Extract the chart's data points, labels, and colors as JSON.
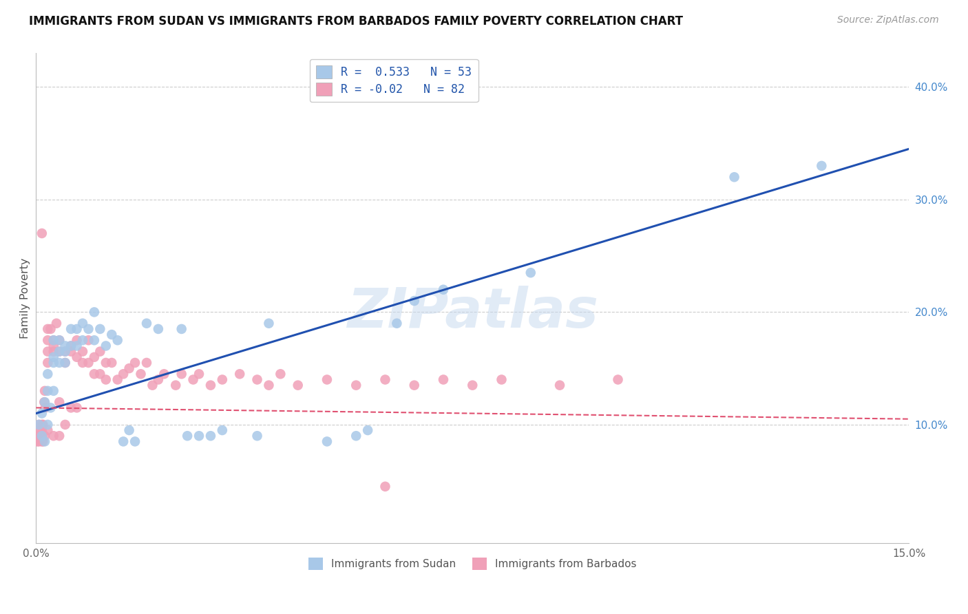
{
  "title": "IMMIGRANTS FROM SUDAN VS IMMIGRANTS FROM BARBADOS FAMILY POVERTY CORRELATION CHART",
  "source": "Source: ZipAtlas.com",
  "ylabel": "Family Poverty",
  "ytick_vals": [
    0.1,
    0.2,
    0.3,
    0.4
  ],
  "ytick_labels": [
    "10.0%",
    "20.0%",
    "30.0%",
    "40.0%"
  ],
  "xlim": [
    0.0,
    0.15
  ],
  "ylim": [
    -0.005,
    0.43
  ],
  "sudan_R": 0.533,
  "sudan_N": 53,
  "barbados_R": -0.02,
  "barbados_N": 82,
  "sudan_color": "#a8c8e8",
  "barbados_color": "#f0a0b8",
  "sudan_line_color": "#2050b0",
  "barbados_line_color": "#e05070",
  "watermark": "ZIPatlas",
  "legend_sudan_label": "Immigrants from Sudan",
  "legend_barbados_label": "Immigrants from Barbados",
  "sudan_line_x0": 0.0,
  "sudan_line_y0": 0.11,
  "sudan_line_x1": 0.15,
  "sudan_line_y1": 0.345,
  "barbados_line_x0": 0.0,
  "barbados_line_y0": 0.115,
  "barbados_line_x1": 0.15,
  "barbados_line_y1": 0.105,
  "sudan_x": [
    0.0005,
    0.001,
    0.001,
    0.0015,
    0.0015,
    0.002,
    0.002,
    0.002,
    0.0025,
    0.003,
    0.003,
    0.003,
    0.003,
    0.004,
    0.004,
    0.004,
    0.005,
    0.005,
    0.005,
    0.006,
    0.006,
    0.007,
    0.007,
    0.008,
    0.008,
    0.009,
    0.01,
    0.01,
    0.011,
    0.012,
    0.013,
    0.014,
    0.015,
    0.016,
    0.017,
    0.019,
    0.021,
    0.025,
    0.026,
    0.028,
    0.03,
    0.032,
    0.038,
    0.04,
    0.05,
    0.055,
    0.057,
    0.062,
    0.065,
    0.07,
    0.085,
    0.12,
    0.135
  ],
  "sudan_y": [
    0.1,
    0.09,
    0.11,
    0.085,
    0.12,
    0.1,
    0.13,
    0.145,
    0.115,
    0.13,
    0.16,
    0.175,
    0.155,
    0.165,
    0.155,
    0.175,
    0.17,
    0.155,
    0.165,
    0.17,
    0.185,
    0.17,
    0.185,
    0.175,
    0.19,
    0.185,
    0.175,
    0.2,
    0.185,
    0.17,
    0.18,
    0.175,
    0.085,
    0.095,
    0.085,
    0.19,
    0.185,
    0.185,
    0.09,
    0.09,
    0.09,
    0.095,
    0.09,
    0.19,
    0.085,
    0.09,
    0.095,
    0.19,
    0.21,
    0.22,
    0.235,
    0.32,
    0.33
  ],
  "barbados_x": [
    0.0002,
    0.0004,
    0.0005,
    0.0005,
    0.0006,
    0.0008,
    0.001,
    0.001,
    0.001,
    0.001,
    0.0012,
    0.0012,
    0.0014,
    0.0015,
    0.0015,
    0.0016,
    0.002,
    0.002,
    0.002,
    0.002,
    0.002,
    0.0025,
    0.003,
    0.003,
    0.003,
    0.003,
    0.0035,
    0.004,
    0.004,
    0.004,
    0.004,
    0.005,
    0.005,
    0.005,
    0.006,
    0.006,
    0.006,
    0.007,
    0.007,
    0.007,
    0.008,
    0.008,
    0.009,
    0.009,
    0.01,
    0.01,
    0.011,
    0.011,
    0.012,
    0.012,
    0.013,
    0.014,
    0.015,
    0.016,
    0.017,
    0.018,
    0.019,
    0.02,
    0.021,
    0.022,
    0.024,
    0.025,
    0.027,
    0.028,
    0.03,
    0.032,
    0.035,
    0.038,
    0.04,
    0.042,
    0.045,
    0.05,
    0.055,
    0.06,
    0.065,
    0.07,
    0.075,
    0.08,
    0.09,
    0.1,
    0.06,
    0.001
  ],
  "barbados_y": [
    0.085,
    0.09,
    0.1,
    0.085,
    0.095,
    0.09,
    0.095,
    0.1,
    0.085,
    0.09,
    0.1,
    0.085,
    0.12,
    0.13,
    0.09,
    0.115,
    0.165,
    0.175,
    0.185,
    0.155,
    0.095,
    0.185,
    0.175,
    0.17,
    0.165,
    0.09,
    0.19,
    0.175,
    0.165,
    0.12,
    0.09,
    0.165,
    0.155,
    0.1,
    0.17,
    0.165,
    0.115,
    0.16,
    0.175,
    0.115,
    0.165,
    0.155,
    0.175,
    0.155,
    0.16,
    0.145,
    0.165,
    0.145,
    0.155,
    0.14,
    0.155,
    0.14,
    0.145,
    0.15,
    0.155,
    0.145,
    0.155,
    0.135,
    0.14,
    0.145,
    0.135,
    0.145,
    0.14,
    0.145,
    0.135,
    0.14,
    0.145,
    0.14,
    0.135,
    0.145,
    0.135,
    0.14,
    0.135,
    0.14,
    0.135,
    0.14,
    0.135,
    0.14,
    0.135,
    0.14,
    0.045,
    0.27
  ]
}
